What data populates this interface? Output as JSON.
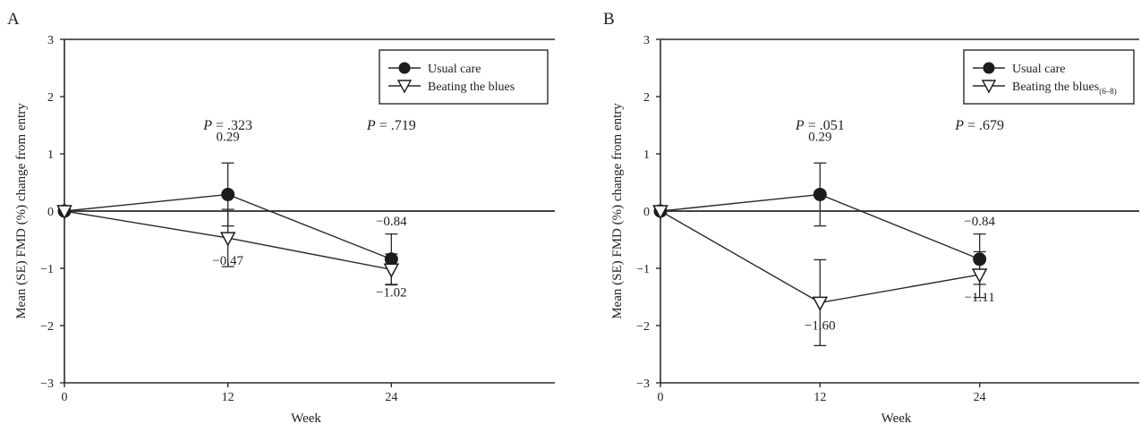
{
  "chart_data": [
    {
      "type": "line",
      "panel_label": "A",
      "xlabel": "Week",
      "ylabel": "Mean (SE) FMD (%) change from entry",
      "x": [
        0,
        12,
        24
      ],
      "xlim": [
        0,
        36
      ],
      "xticks": [
        0,
        12,
        24
      ],
      "ylim": [
        -3,
        3
      ],
      "yticks": [
        -3,
        -2,
        -1,
        0,
        1,
        2,
        3
      ],
      "legend_position": "top-right",
      "series": [
        {
          "name": "Usual care",
          "marker": "filled-circle",
          "color": "#222222",
          "values": [
            0,
            0.29,
            -0.84
          ],
          "se": [
            0,
            0.55,
            0.44
          ],
          "value_labels": [
            "",
            "0.29",
            "−0.84"
          ]
        },
        {
          "name": "Beating the blues",
          "name_sub": "",
          "marker": "open-triangle-down",
          "color": "#222222",
          "values": [
            0,
            -0.47,
            -1.02
          ],
          "se": [
            0,
            0.5,
            0.27
          ],
          "value_labels": [
            "",
            "−0.47",
            "−1.02"
          ]
        }
      ],
      "annotations": [
        {
          "x": 12,
          "y": 1.5,
          "italic": "P",
          "text": " = .323"
        },
        {
          "x": 24,
          "y": 1.5,
          "italic": "P",
          "text": " = .719"
        }
      ]
    },
    {
      "type": "line",
      "panel_label": "B",
      "xlabel": "Week",
      "ylabel": "Mean (SE) FMD (%) change from entry",
      "x": [
        0,
        12,
        24
      ],
      "xlim": [
        0,
        36
      ],
      "xticks": [
        0,
        12,
        24
      ],
      "ylim": [
        -3,
        3
      ],
      "yticks": [
        -3,
        -2,
        -1,
        0,
        1,
        2,
        3
      ],
      "legend_position": "top-right",
      "series": [
        {
          "name": "Usual care",
          "marker": "filled-circle",
          "color": "#222222",
          "values": [
            0,
            0.29,
            -0.84
          ],
          "se": [
            0,
            0.55,
            0.44
          ],
          "value_labels": [
            "",
            "0.29",
            "−0.84"
          ]
        },
        {
          "name": "Beating the blues",
          "name_sub": "(6–8)",
          "marker": "open-triangle-down",
          "color": "#222222",
          "values": [
            0,
            -1.6,
            -1.11
          ],
          "se": [
            0,
            0.75,
            0.4
          ],
          "value_labels": [
            "",
            "−1.60",
            "−1.11"
          ]
        }
      ],
      "annotations": [
        {
          "x": 12,
          "y": 1.5,
          "italic": "P",
          "text": " = .051"
        },
        {
          "x": 24,
          "y": 1.5,
          "italic": "P",
          "text": " = .679"
        }
      ]
    }
  ]
}
